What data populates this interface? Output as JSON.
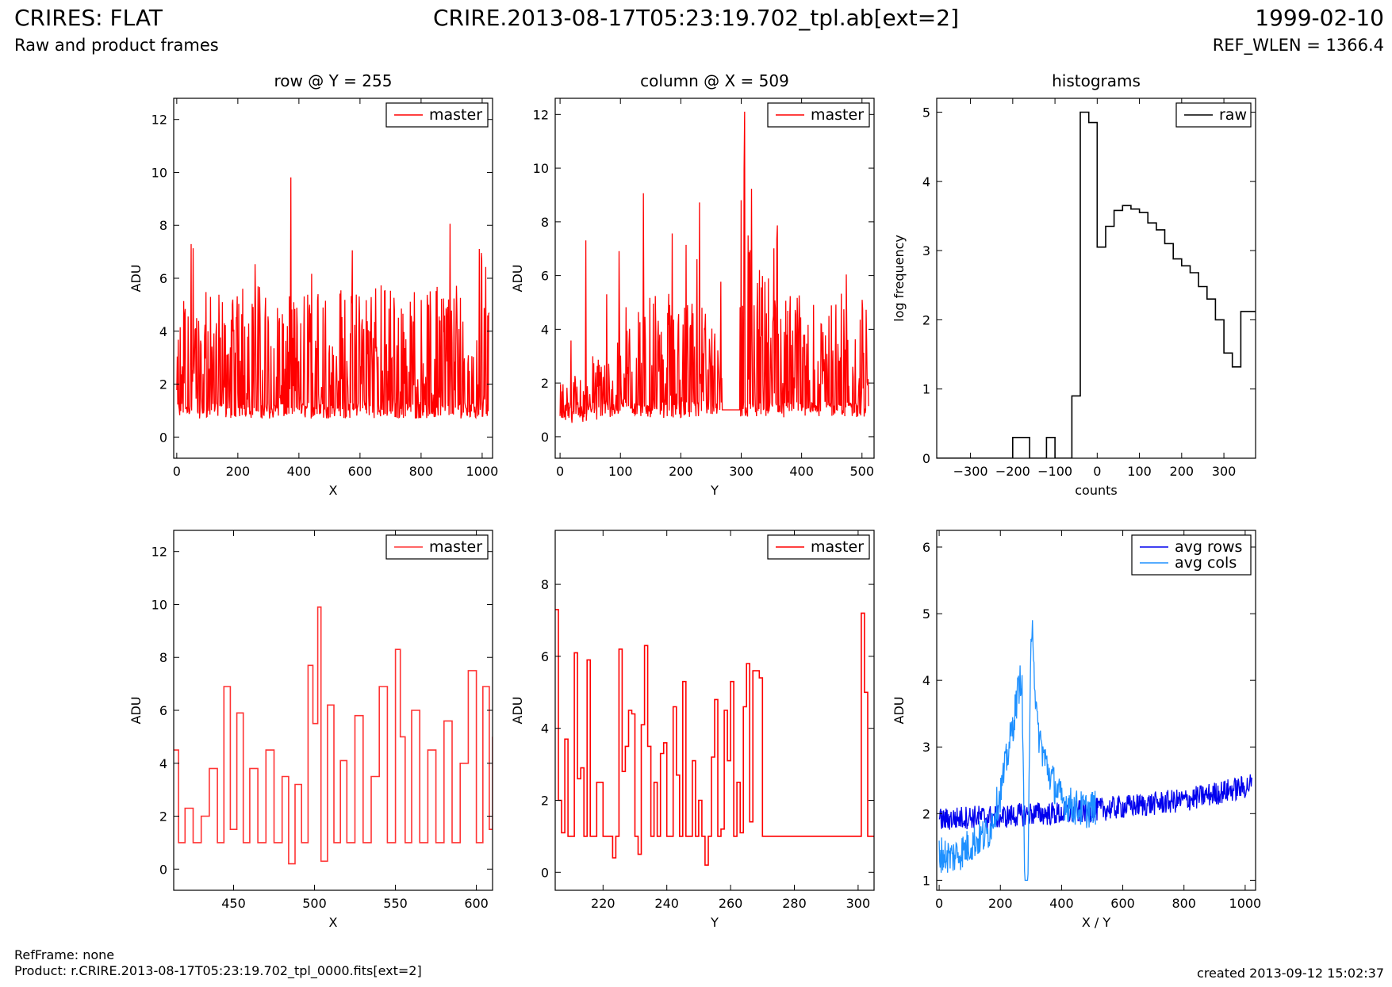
{
  "header": {
    "title": "CRIRES: FLAT",
    "subtitle": "Raw and product frames",
    "file": "CRIRE.2013-08-17T05:23:19.702_tpl.ab[ext=2]",
    "date": "1999-02-10",
    "ref_wlen": "REF_WLEN = 1366.4"
  },
  "footer": {
    "refframe": "RefFrame: none",
    "product": "Product: r.CRIRE.2013-08-17T05:23:19.702_tpl_0000.fits[ext=2]",
    "created": "created 2013-09-12 15:02:37"
  },
  "colors": {
    "master": "#ff0000",
    "master_zoom": "#ff3333",
    "raw": "#000000",
    "avg_rows": "#0000ee",
    "avg_cols": "#1e90ff"
  },
  "chart_data": [
    {
      "id": "row",
      "type": "line",
      "title": "row @ Y = 255",
      "xlabel": "X",
      "ylabel": "ADU",
      "xlim": [
        -10,
        1034
      ],
      "ylim": [
        -0.8,
        12.8
      ],
      "xticks": [
        0,
        200,
        400,
        600,
        800,
        1000
      ],
      "yticks": [
        0,
        2,
        4,
        6,
        8,
        10,
        12
      ],
      "grid": false,
      "legend": "top-right",
      "series": [
        {
          "name": "master",
          "color": "#ff0000",
          "style": "line",
          "x": [
            0,
            40,
            80,
            120,
            160,
            200,
            240,
            280,
            320,
            360,
            400,
            440,
            480,
            520,
            560,
            600,
            640,
            680,
            720,
            760,
            800,
            840,
            880,
            920,
            960,
            1000,
            1023
          ],
          "y": [
            2.0,
            3.1,
            2.4,
            2.8,
            2.6,
            2.7,
            3.0,
            2.9,
            2.5,
            2.7,
            2.6,
            2.9,
            2.8,
            3.0,
            2.7,
            2.8,
            3.1,
            2.9,
            2.8,
            3.0,
            2.9,
            2.8,
            3.0,
            3.1,
            3.3,
            3.5,
            3.2
          ]
        }
      ]
    },
    {
      "id": "column",
      "type": "line",
      "title": "column @ X = 509",
      "xlabel": "Y",
      "ylabel": "ADU",
      "xlim": [
        -8,
        520
      ],
      "ylim": [
        -0.8,
        12.6
      ],
      "xticks": [
        0,
        100,
        200,
        300,
        400,
        500
      ],
      "yticks": [
        0,
        2,
        4,
        6,
        8,
        10,
        12
      ],
      "grid": false,
      "legend": "top-right",
      "series": [
        {
          "name": "master",
          "color": "#ff0000",
          "style": "line",
          "x": [
            0,
            25,
            50,
            75,
            100,
            125,
            150,
            175,
            200,
            225,
            250,
            270,
            280,
            290,
            300,
            305,
            310,
            325,
            350,
            375,
            400,
            425,
            450,
            475,
            500,
            511
          ],
          "y": [
            1.0,
            1.2,
            1.4,
            1.6,
            2.0,
            2.4,
            2.6,
            2.7,
            2.5,
            2.6,
            2.4,
            1.0,
            1.0,
            1.0,
            5.5,
            9.8,
            4.0,
            3.2,
            3.0,
            2.8,
            2.6,
            2.4,
            2.6,
            2.5,
            2.6,
            2.5
          ]
        }
      ]
    },
    {
      "id": "histograms",
      "type": "step",
      "title": "histograms",
      "xlabel": "counts",
      "ylabel": "log frequency",
      "xlim": [
        -380,
        375
      ],
      "ylim": [
        0,
        5.2
      ],
      "xticks": [
        -300,
        -200,
        -100,
        0,
        100,
        200,
        300
      ],
      "yticks": [
        0,
        1,
        2,
        3,
        4,
        5
      ],
      "grid": false,
      "legend": "top-right",
      "series": [
        {
          "name": "raw",
          "color": "#000000",
          "style": "step",
          "edges": [
            -380,
            -340,
            -300,
            -200,
            -180,
            -160,
            -140,
            -120,
            -100,
            -80,
            -60,
            -40,
            -20,
            0,
            20,
            40,
            60,
            80,
            100,
            120,
            140,
            160,
            180,
            200,
            220,
            240,
            260,
            280,
            300,
            320,
            340,
            360,
            375
          ],
          "values": [
            0,
            0,
            0,
            0.3,
            0.3,
            0,
            0,
            0.3,
            0,
            0,
            0.9,
            5.0,
            4.85,
            3.05,
            3.35,
            3.58,
            3.65,
            3.6,
            3.55,
            3.4,
            3.3,
            3.1,
            2.88,
            2.78,
            2.68,
            2.48,
            2.3,
            2.0,
            1.52,
            1.32,
            2.12,
            2.12
          ]
        }
      ]
    },
    {
      "id": "row_zoom",
      "type": "line",
      "title": "",
      "xlabel": "X",
      "ylabel": "ADU",
      "xlim": [
        413,
        610
      ],
      "ylim": [
        -0.8,
        12.8
      ],
      "xticks": [
        450,
        500,
        550,
        600
      ],
      "yticks": [
        0,
        2,
        4,
        6,
        8,
        10,
        12
      ],
      "grid": false,
      "legend": "top-right",
      "series": [
        {
          "name": "master",
          "color": "#ff3333",
          "style": "step",
          "x": [
            413,
            416,
            420,
            425,
            430,
            435,
            440,
            444,
            448,
            452,
            456,
            460,
            465,
            470,
            475,
            480,
            484,
            488,
            492,
            496,
            499,
            502,
            504,
            508,
            512,
            516,
            520,
            525,
            530,
            535,
            540,
            545,
            550,
            553,
            556,
            560,
            565,
            570,
            575,
            580,
            585,
            590,
            595,
            600,
            604,
            608,
            610
          ],
          "y": [
            4.5,
            1.0,
            2.3,
            1.0,
            2.0,
            3.8,
            1.0,
            6.9,
            1.5,
            5.9,
            1.0,
            3.8,
            1.0,
            4.5,
            1.0,
            3.5,
            0.2,
            3.2,
            1.0,
            7.7,
            5.5,
            9.9,
            0.3,
            6.2,
            1.0,
            4.1,
            1.0,
            5.8,
            1.0,
            3.5,
            6.9,
            1.0,
            8.3,
            5.0,
            1.0,
            6.0,
            1.0,
            4.5,
            1.0,
            5.6,
            1.0,
            4.0,
            7.5,
            1.0,
            6.9,
            1.5,
            5.0
          ]
        }
      ]
    },
    {
      "id": "column_zoom",
      "type": "line",
      "title": "",
      "xlabel": "Y",
      "ylabel": "ADU",
      "xlim": [
        205,
        305
      ],
      "ylim": [
        -0.5,
        9.5
      ],
      "xticks": [
        220,
        240,
        260,
        280,
        300
      ],
      "yticks": [
        0,
        2,
        4,
        6,
        8
      ],
      "grid": false,
      "legend": "top-right",
      "series": [
        {
          "name": "master",
          "color": "#ff0000",
          "style": "step",
          "x": [
            205,
            206,
            207,
            208,
            209,
            210,
            211,
            212,
            213,
            214,
            215,
            216,
            218,
            220,
            222,
            223,
            224,
            225,
            226,
            227,
            228,
            229,
            230,
            231,
            232,
            233,
            234,
            235,
            236,
            237,
            238,
            239,
            240,
            241,
            242,
            243,
            244,
            245,
            246,
            247,
            248,
            249,
            250,
            251,
            252,
            253,
            254,
            255,
            256,
            257,
            258,
            259,
            260,
            261,
            262,
            263,
            264,
            265,
            266,
            267,
            268,
            269,
            270,
            280,
            290,
            300,
            301,
            302,
            303,
            304,
            305
          ],
          "y": [
            7.3,
            2.0,
            1.1,
            3.7,
            1.0,
            1.0,
            6.1,
            2.6,
            2.9,
            1.0,
            5.9,
            1.0,
            2.5,
            1.0,
            1.0,
            0.4,
            1.0,
            6.2,
            2.8,
            3.5,
            4.5,
            4.4,
            1.0,
            0.5,
            4.1,
            6.3,
            3.5,
            1.0,
            2.5,
            1.0,
            3.3,
            3.6,
            1.0,
            1.0,
            4.6,
            2.7,
            1.0,
            5.3,
            1.0,
            1.0,
            3.1,
            1.0,
            2.0,
            1.0,
            0.2,
            1.0,
            3.2,
            4.8,
            1.0,
            1.2,
            4.5,
            3.1,
            5.3,
            1.0,
            2.5,
            1.1,
            4.6,
            5.8,
            1.4,
            5.6,
            5.6,
            5.4,
            1.0,
            1.0,
            1.0,
            1.0,
            7.2,
            5.0,
            1.0,
            1.0,
            1.0
          ]
        }
      ]
    },
    {
      "id": "averages",
      "type": "line",
      "title": "",
      "xlabel": "X / Y",
      "ylabel": "ADU",
      "xlim": [
        -8,
        1034
      ],
      "ylim": [
        0.85,
        6.25
      ],
      "xticks": [
        0,
        200,
        400,
        600,
        800,
        1000
      ],
      "yticks": [
        1,
        2,
        3,
        4,
        5,
        6
      ],
      "grid": false,
      "legend": "top-right",
      "series": [
        {
          "name": "avg rows",
          "color": "#0000ee",
          "style": "line",
          "x": [
            0,
            100,
            200,
            300,
            400,
            500,
            600,
            700,
            800,
            900,
            1000,
            1023
          ],
          "y": [
            1.9,
            1.95,
            1.95,
            2.0,
            2.0,
            2.05,
            2.1,
            2.15,
            2.2,
            2.3,
            2.4,
            2.45
          ]
        },
        {
          "name": "avg cols",
          "color": "#1e90ff",
          "style": "line",
          "x": [
            0,
            40,
            80,
            120,
            160,
            200,
            220,
            240,
            260,
            270,
            280,
            290,
            300,
            305,
            310,
            320,
            340,
            360,
            380,
            400,
            440,
            480,
            511
          ],
          "y": [
            1.4,
            1.35,
            1.45,
            1.6,
            1.7,
            2.3,
            2.8,
            3.3,
            3.9,
            4.1,
            1.0,
            1.0,
            4.5,
            5.05,
            4.2,
            3.3,
            2.9,
            2.6,
            2.4,
            2.2,
            2.1,
            2.05,
            2.1
          ]
        }
      ]
    }
  ]
}
